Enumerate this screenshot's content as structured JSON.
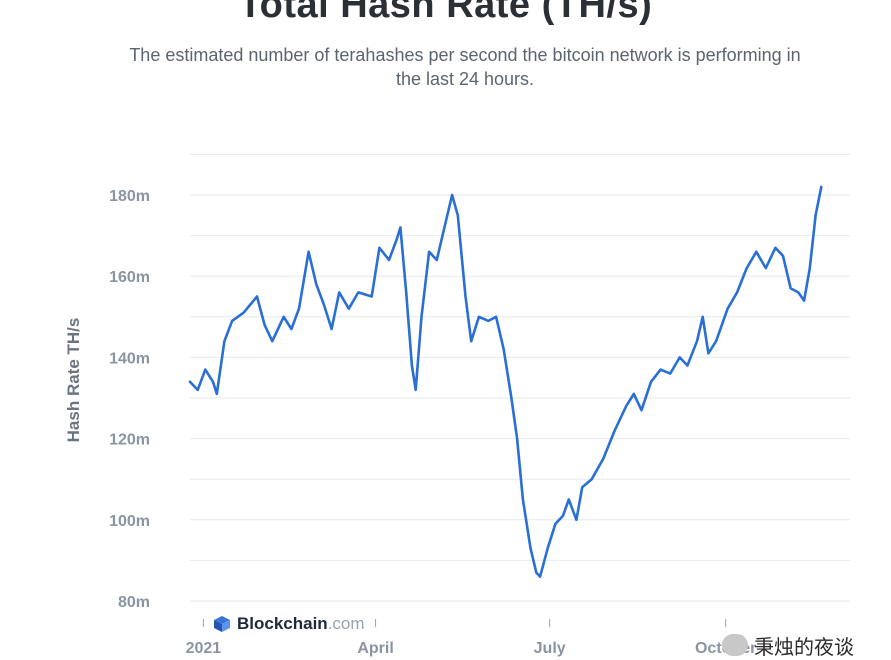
{
  "header": {
    "title": "Total Hash Rate (TH/s)",
    "subtitle": "The estimated number of terahashes per second the bitcoin network is performing in the last 24 hours."
  },
  "brand": {
    "name": "Blockchain",
    "suffix": ".com"
  },
  "watermark": {
    "text": "秉烛的夜谈"
  },
  "colors": {
    "line": "#2a6fd6",
    "grid": "#e6e9ee",
    "tick": "#8a94a3"
  },
  "chart_data": {
    "type": "line",
    "title": "Total Hash Rate (TH/s)",
    "ylabel": "Hash Rate TH/s",
    "xlabel": "",
    "ylim": [
      80,
      190
    ],
    "y_ticks": [
      80,
      100,
      120,
      140,
      160,
      180
    ],
    "y_tick_labels": [
      "80m",
      "100m",
      "120m",
      "140m",
      "160m",
      "180m"
    ],
    "x_range": [
      "2020-12-25",
      "2021-12-05"
    ],
    "x_ticks": [
      {
        "date": "2021-01-01",
        "label": "2021"
      },
      {
        "date": "2021-04-01",
        "label": "April"
      },
      {
        "date": "2021-07-01",
        "label": "July"
      },
      {
        "date": "2021-10-01",
        "label": "October"
      }
    ],
    "grid": true,
    "series": [
      {
        "points": [
          [
            "2020-12-25",
            134
          ],
          [
            "2020-12-29",
            132
          ],
          [
            "2021-01-02",
            137
          ],
          [
            "2021-01-06",
            134
          ],
          [
            "2021-01-08",
            131
          ],
          [
            "2021-01-12",
            144
          ],
          [
            "2021-01-16",
            149
          ],
          [
            "2021-01-22",
            151
          ],
          [
            "2021-01-29",
            155
          ],
          [
            "2021-02-02",
            148
          ],
          [
            "2021-02-06",
            144
          ],
          [
            "2021-02-12",
            150
          ],
          [
            "2021-02-16",
            147
          ],
          [
            "2021-02-20",
            152
          ],
          [
            "2021-02-25",
            166
          ],
          [
            "2021-03-01",
            158
          ],
          [
            "2021-03-05",
            153
          ],
          [
            "2021-03-09",
            147
          ],
          [
            "2021-03-13",
            156
          ],
          [
            "2021-03-18",
            152
          ],
          [
            "2021-03-23",
            156
          ],
          [
            "2021-03-30",
            155
          ],
          [
            "2021-04-03",
            167
          ],
          [
            "2021-04-08",
            164
          ],
          [
            "2021-04-12",
            169
          ],
          [
            "2021-04-14",
            172
          ],
          [
            "2021-04-17",
            156
          ],
          [
            "2021-04-20",
            138
          ],
          [
            "2021-04-22",
            132
          ],
          [
            "2021-04-25",
            150
          ],
          [
            "2021-04-29",
            166
          ],
          [
            "2021-05-03",
            164
          ],
          [
            "2021-05-07",
            172
          ],
          [
            "2021-05-11",
            180
          ],
          [
            "2021-05-14",
            175
          ],
          [
            "2021-05-18",
            155
          ],
          [
            "2021-05-21",
            144
          ],
          [
            "2021-05-25",
            150
          ],
          [
            "2021-05-30",
            149
          ],
          [
            "2021-06-03",
            150
          ],
          [
            "2021-06-07",
            142
          ],
          [
            "2021-06-11",
            130
          ],
          [
            "2021-06-14",
            120
          ],
          [
            "2021-06-17",
            105
          ],
          [
            "2021-06-21",
            93
          ],
          [
            "2021-06-24",
            87
          ],
          [
            "2021-06-26",
            86
          ],
          [
            "2021-06-30",
            93
          ],
          [
            "2021-07-04",
            99
          ],
          [
            "2021-07-08",
            101
          ],
          [
            "2021-07-11",
            105
          ],
          [
            "2021-07-15",
            100
          ],
          [
            "2021-07-18",
            108
          ],
          [
            "2021-07-23",
            110
          ],
          [
            "2021-07-29",
            115
          ],
          [
            "2021-08-04",
            122
          ],
          [
            "2021-08-10",
            128
          ],
          [
            "2021-08-14",
            131
          ],
          [
            "2021-08-18",
            127
          ],
          [
            "2021-08-23",
            134
          ],
          [
            "2021-08-28",
            137
          ],
          [
            "2021-09-02",
            136
          ],
          [
            "2021-09-07",
            140
          ],
          [
            "2021-09-11",
            138
          ],
          [
            "2021-09-16",
            144
          ],
          [
            "2021-09-19",
            150
          ],
          [
            "2021-09-22",
            141
          ],
          [
            "2021-09-26",
            144
          ],
          [
            "2021-10-02",
            152
          ],
          [
            "2021-10-07",
            156
          ],
          [
            "2021-10-12",
            162
          ],
          [
            "2021-10-17",
            166
          ],
          [
            "2021-10-22",
            162
          ],
          [
            "2021-10-27",
            167
          ],
          [
            "2021-10-31",
            165
          ],
          [
            "2021-11-04",
            157
          ],
          [
            "2021-11-08",
            156
          ],
          [
            "2021-11-11",
            154
          ],
          [
            "2021-11-14",
            162
          ],
          [
            "2021-11-17",
            175
          ],
          [
            "2021-11-20",
            182
          ]
        ]
      }
    ]
  }
}
